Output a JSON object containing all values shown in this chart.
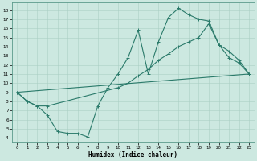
{
  "xlabel": "Humidex (Indice chaleur)",
  "bg_color": "#cce8e0",
  "line_color": "#2a7a6a",
  "xlim": [
    -0.5,
    23.5
  ],
  "ylim": [
    3.5,
    18.8
  ],
  "xticks": [
    0,
    1,
    2,
    3,
    4,
    5,
    6,
    7,
    8,
    9,
    10,
    11,
    12,
    13,
    14,
    15,
    16,
    17,
    18,
    19,
    20,
    21,
    22,
    23
  ],
  "yticks": [
    4,
    5,
    6,
    7,
    8,
    9,
    10,
    11,
    12,
    13,
    14,
    15,
    16,
    17,
    18
  ],
  "line1_x": [
    0,
    1,
    2,
    3,
    4,
    5,
    6,
    7,
    8,
    9,
    10,
    11,
    12,
    13,
    14,
    15,
    16,
    17,
    18,
    19,
    20,
    21,
    22,
    23
  ],
  "line1_y": [
    9.0,
    8.0,
    7.5,
    6.5,
    4.7,
    4.5,
    4.5,
    4.1,
    7.5,
    9.5,
    11.0,
    12.8,
    15.8,
    11.0,
    14.5,
    17.2,
    18.2,
    17.5,
    17.0,
    16.8,
    14.2,
    12.8,
    12.2,
    11.0
  ],
  "line2_x": [
    0,
    23
  ],
  "line2_y": [
    9.0,
    11.0
  ],
  "line3_x": [
    0,
    1,
    2,
    3,
    10,
    11,
    12,
    13,
    14,
    15,
    16,
    17,
    18,
    19,
    20,
    21,
    22,
    23
  ],
  "line3_y": [
    9.0,
    8.0,
    7.5,
    7.5,
    9.5,
    10.0,
    10.8,
    11.5,
    12.5,
    13.2,
    14.0,
    14.5,
    15.0,
    16.5,
    14.2,
    13.5,
    12.5,
    11.0
  ]
}
